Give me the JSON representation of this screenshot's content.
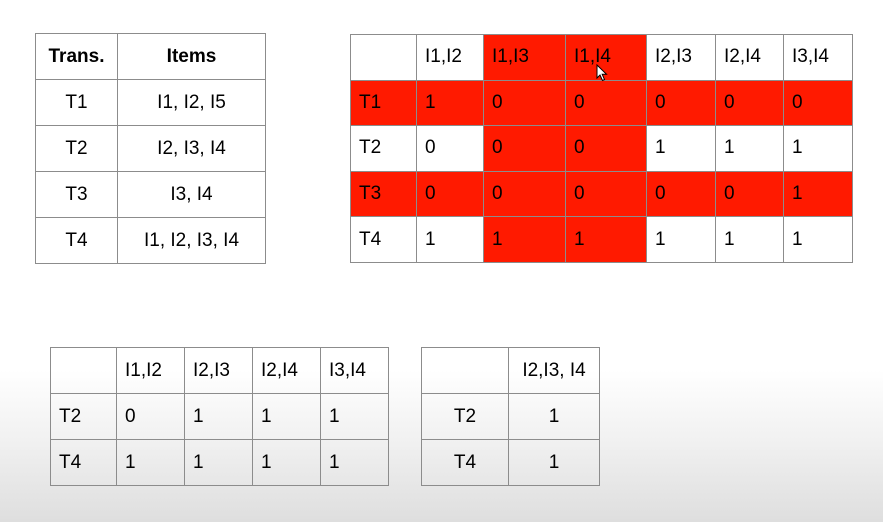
{
  "table1": {
    "headers": [
      "Trans.",
      "Items"
    ],
    "rows": [
      [
        "T1",
        "I1, I2, I5"
      ],
      [
        "T2",
        "I2, I3, I4"
      ],
      [
        "T3",
        "I3, I4"
      ],
      [
        "T4",
        "I1, I2, I3, I4"
      ]
    ]
  },
  "table2": {
    "headers": [
      "",
      "I1,I2",
      "I1,I3",
      "I1,I4",
      "I2,I3",
      "I2,I4",
      "I3,I4"
    ],
    "rows": [
      [
        "T1",
        "1",
        "0",
        "0",
        "0",
        "0",
        "0"
      ],
      [
        "T2",
        "0",
        "0",
        "0",
        "1",
        "1",
        "1"
      ],
      [
        "T3",
        "0",
        "0",
        "0",
        "0",
        "0",
        "1"
      ],
      [
        "T4",
        "1",
        "1",
        "1",
        "1",
        "1",
        "1"
      ]
    ],
    "highlight_color": "#ff1a00",
    "highlighted_rows": [
      "T1",
      "T3"
    ],
    "highlighted_columns": [
      "I1,I3",
      "I1,I4"
    ]
  },
  "table3": {
    "headers": [
      "",
      "I1,I2",
      "I2,I3",
      "I2,I4",
      "I3,I4"
    ],
    "rows": [
      [
        "T2",
        "0",
        "1",
        "1",
        "1"
      ],
      [
        "T4",
        "1",
        "1",
        "1",
        "1"
      ]
    ]
  },
  "table4": {
    "headers": [
      "",
      "I2,I3, I4"
    ],
    "rows": [
      [
        "T2",
        "1"
      ],
      [
        "T4",
        "1"
      ]
    ]
  },
  "cursor": "mouse-pointer-icon"
}
